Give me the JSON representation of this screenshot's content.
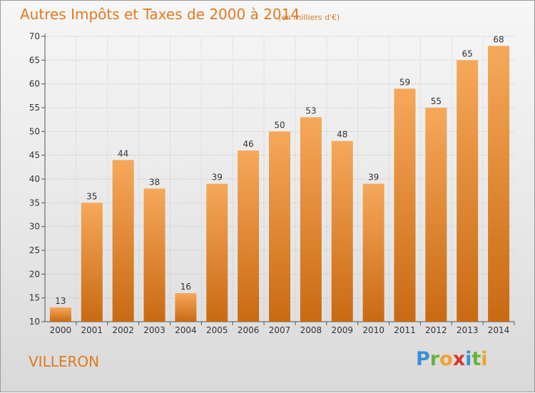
{
  "title": "Autres Impôts et Taxes de 2000 à 2014",
  "subtitle": "(en milliers d'€)",
  "place": "VILLERON",
  "logo_text": "Proxiti",
  "colors": {
    "accent": "#e07a1f",
    "bar_light": "#f6a85a",
    "bar_dark": "#c96a12"
  },
  "chart_data": {
    "type": "bar",
    "title": "Autres Impôts et Taxes de 2000 à 2014",
    "subtitle": "(en milliers d'€)",
    "xlabel": "",
    "ylabel": "",
    "categories": [
      "2000",
      "2001",
      "2002",
      "2003",
      "2004",
      "2005",
      "2006",
      "2007",
      "2008",
      "2009",
      "2010",
      "2011",
      "2012",
      "2013",
      "2014"
    ],
    "values": [
      13,
      35,
      44,
      38,
      16,
      39,
      46,
      50,
      53,
      48,
      39,
      59,
      55,
      65,
      68
    ],
    "ylim": [
      10,
      70
    ],
    "yticks": [
      10,
      15,
      20,
      25,
      30,
      35,
      40,
      45,
      50,
      55,
      60,
      65,
      70
    ],
    "grid": true,
    "data_labels": true
  }
}
